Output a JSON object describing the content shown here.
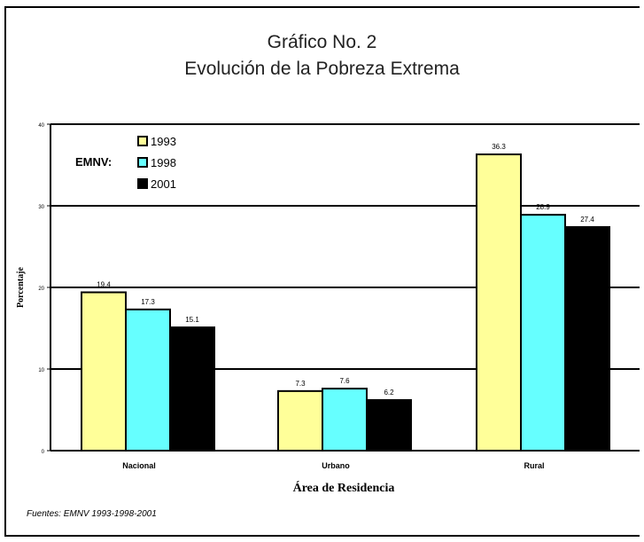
{
  "title_line1": "Gráfico No. 2",
  "title_line2": "Evolución de la Pobreza Extrema",
  "source": "Fuentes: EMNV 1993-1998-2001",
  "chart_data": {
    "type": "bar",
    "title": "Gráfico No. 2 — Evolución de la Pobreza Extrema",
    "xlabel": "Área de Residencia",
    "ylabel": "Porcentaje",
    "ylim": [
      0,
      40
    ],
    "yticks": [
      "0",
      "10",
      "20",
      "30",
      "40"
    ],
    "grid": true,
    "legend_title": "EMNV:",
    "legend_position": "top-left",
    "categories": [
      "Nacional",
      "Urbano",
      "Rural"
    ],
    "series": [
      {
        "name": "1993",
        "color": "#FFFF99",
        "values": [
          19.4,
          7.3,
          36.3
        ],
        "labels": [
          "19.4",
          "7.3",
          "36.3"
        ]
      },
      {
        "name": "1998",
        "color": "#66FFFF",
        "values": [
          17.3,
          7.6,
          28.9
        ],
        "labels": [
          "17.3",
          "7.6",
          "28.9"
        ]
      },
      {
        "name": "2001",
        "color": "#000000",
        "values": [
          15.1,
          6.2,
          27.4
        ],
        "labels": [
          "15.1",
          "6.2",
          "27.4"
        ]
      }
    ]
  }
}
